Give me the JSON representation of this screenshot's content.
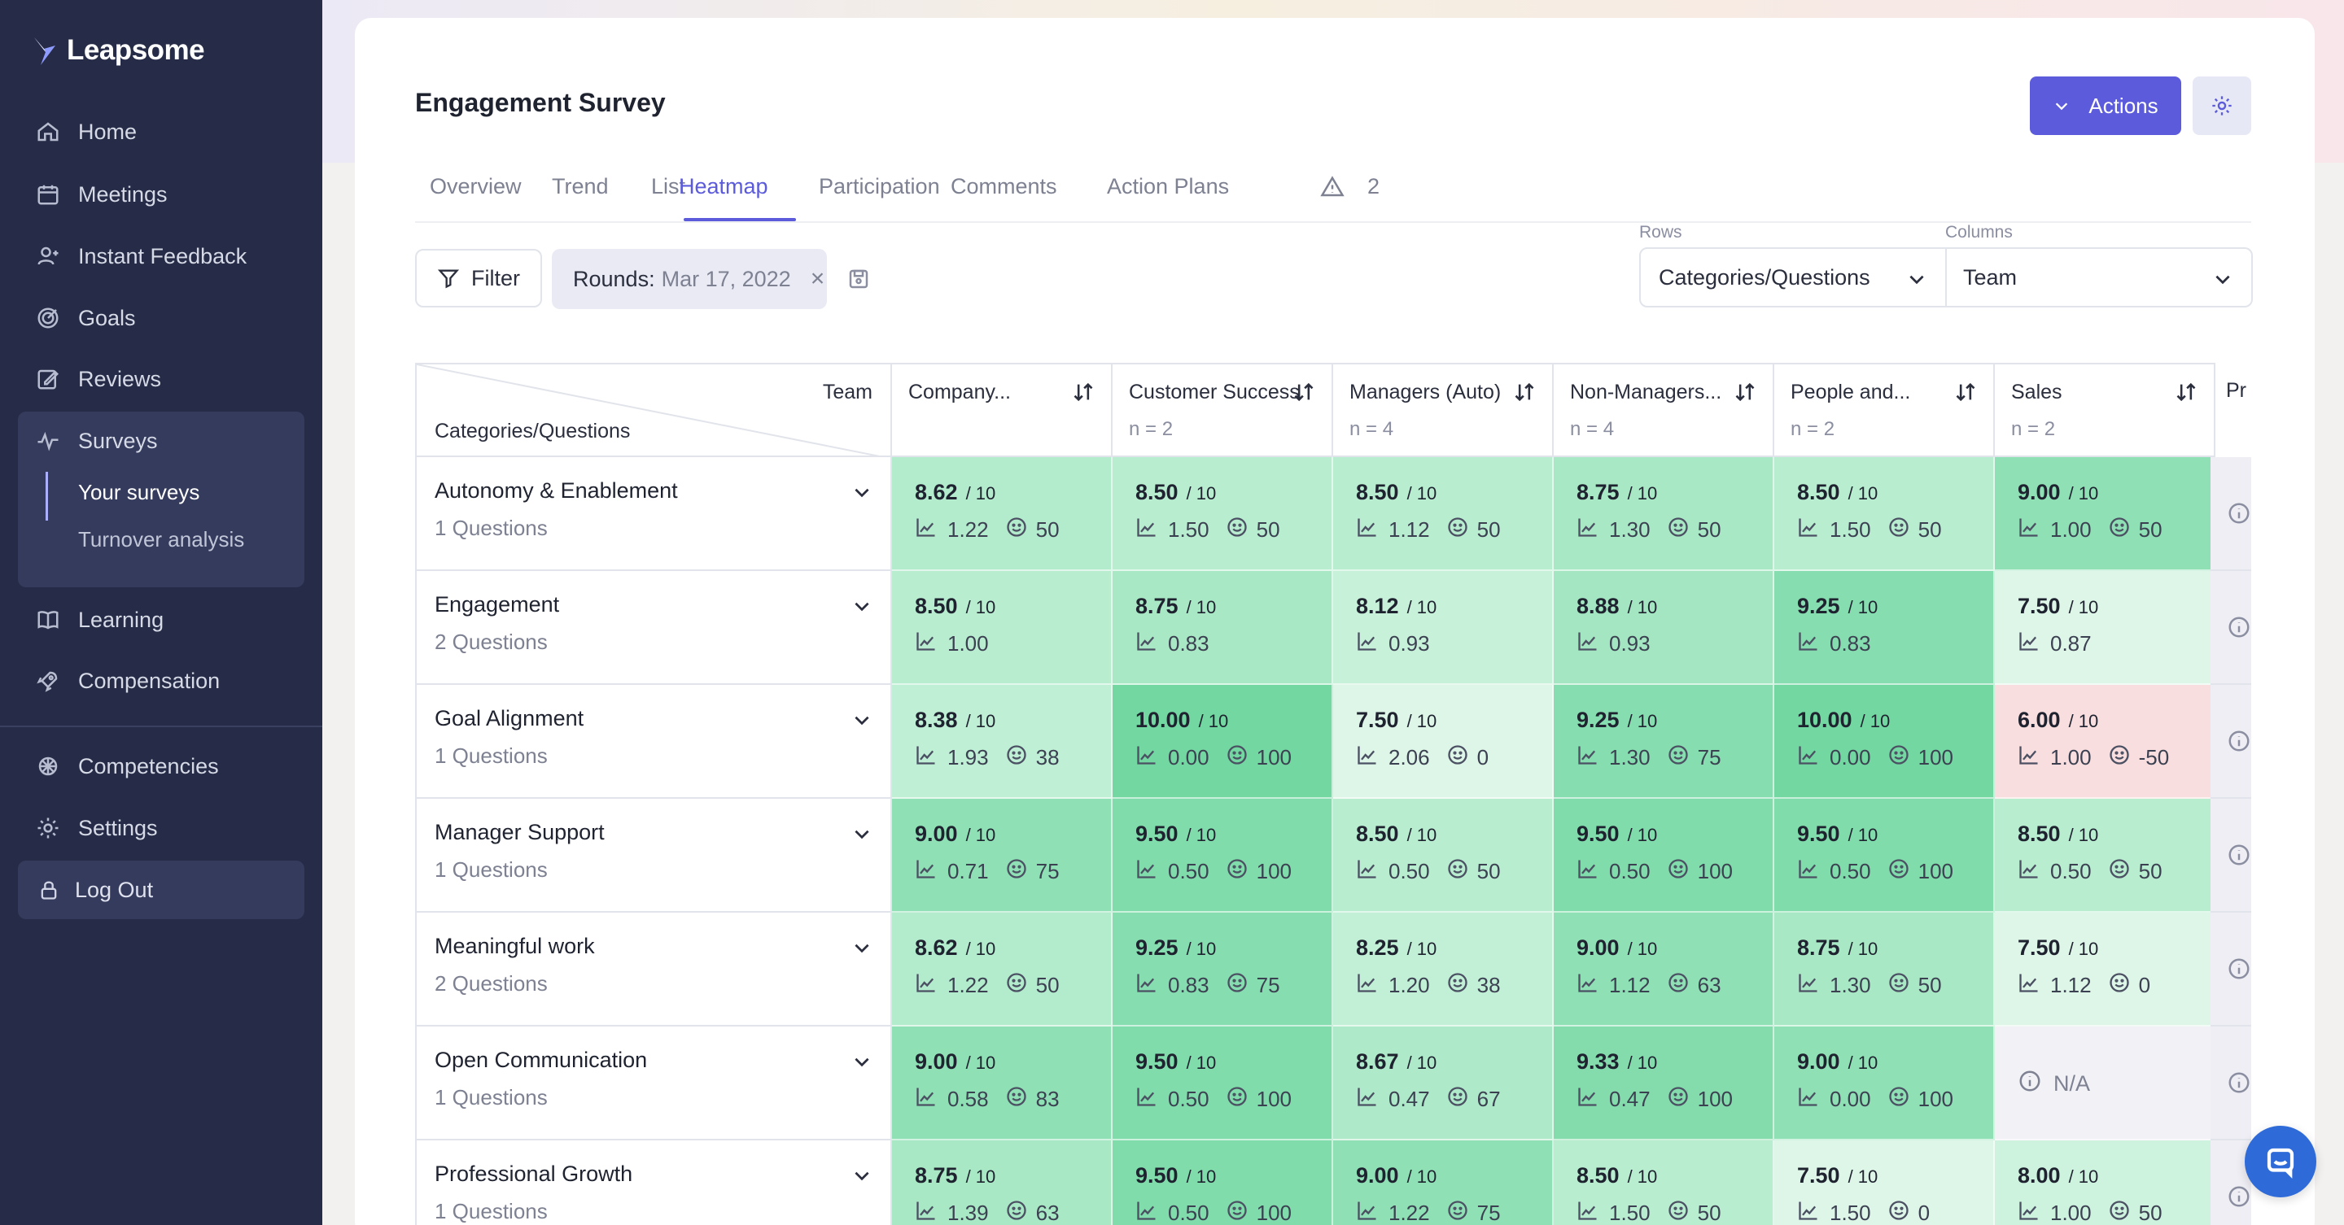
{
  "brand": {
    "name": "Leapsome"
  },
  "sidebar": {
    "items": [
      {
        "label": "Home",
        "icon": "home-icon"
      },
      {
        "label": "Meetings",
        "icon": "calendar-icon"
      },
      {
        "label": "Instant Feedback",
        "icon": "feedback-icon"
      },
      {
        "label": "Goals",
        "icon": "target-icon"
      },
      {
        "label": "Reviews",
        "icon": "edit-icon"
      },
      {
        "label": "Surveys",
        "icon": "pulse-icon"
      },
      {
        "label": "Learning",
        "icon": "book-icon"
      },
      {
        "label": "Compensation",
        "icon": "rocket-icon"
      },
      {
        "label": "Competencies",
        "icon": "badge-icon"
      },
      {
        "label": "Settings",
        "icon": "gear-icon"
      }
    ],
    "surveys_sub": [
      {
        "label": "Your surveys",
        "active": true
      },
      {
        "label": "Turnover analysis",
        "active": false
      }
    ],
    "logout": "Log Out"
  },
  "header": {
    "title": "Engagement Survey",
    "actions_label": "Actions"
  },
  "tabs": [
    {
      "label": "Overview"
    },
    {
      "label": "Trend"
    },
    {
      "label": "List"
    },
    {
      "label": "Heatmap",
      "active": true
    },
    {
      "label": "Participation"
    },
    {
      "label": "Comments"
    },
    {
      "label": "Action Plans"
    }
  ],
  "warnings_count": "2",
  "filters": {
    "filter_label": "Filter",
    "rounds_label": "Rounds:",
    "rounds_value": "Mar 17, 2022"
  },
  "selectors": {
    "rows_label": "Rows",
    "rows_value": "Categories/Questions",
    "columns_label": "Columns",
    "columns_value": "Team"
  },
  "heatmap": {
    "corner_top": "Team",
    "corner_bottom": "Categories/Questions",
    "columns": [
      {
        "name": "Company...",
        "n": ""
      },
      {
        "name": "Customer Success",
        "n": "n = 2"
      },
      {
        "name": "Managers (Auto)",
        "n": "n = 4"
      },
      {
        "name": "Non-Managers...",
        "n": "n = 4"
      },
      {
        "name": "People and...",
        "n": "n = 2"
      },
      {
        "name": "Sales",
        "n": "n = 2"
      }
    ],
    "partial_column": "Pr",
    "out_of": "/ 10",
    "na_label": "N/A",
    "rows": [
      {
        "title": "Autonomy & Enablement",
        "count": "1 Questions",
        "cells": [
          {
            "score": "8.62",
            "sd": "1.22",
            "enps": "50",
            "color": "#b3ebcd"
          },
          {
            "score": "8.50",
            "sd": "1.50",
            "enps": "50",
            "color": "#b8edd0"
          },
          {
            "score": "8.50",
            "sd": "1.12",
            "enps": "50",
            "color": "#b8edd0"
          },
          {
            "score": "8.75",
            "sd": "1.30",
            "enps": "50",
            "color": "#a9e8c5"
          },
          {
            "score": "8.50",
            "sd": "1.50",
            "enps": "50",
            "color": "#b8edd0"
          },
          {
            "score": "9.00",
            "sd": "1.00",
            "enps": "50",
            "color": "#8fe0b5"
          }
        ]
      },
      {
        "title": "Engagement",
        "count": "2 Questions",
        "cells": [
          {
            "score": "8.50",
            "sd": "1.00",
            "enps": "",
            "color": "#b8edd0"
          },
          {
            "score": "8.75",
            "sd": "0.83",
            "enps": "",
            "color": "#a9e8c5"
          },
          {
            "score": "8.12",
            "sd": "0.93",
            "enps": "",
            "color": "#c8f1da"
          },
          {
            "score": "8.88",
            "sd": "0.93",
            "enps": "",
            "color": "#a3e6c1"
          },
          {
            "score": "9.25",
            "sd": "0.83",
            "enps": "",
            "color": "#86ddaf"
          },
          {
            "score": "7.50",
            "sd": "0.87",
            "enps": "",
            "color": "#def6e8"
          }
        ]
      },
      {
        "title": "Goal Alignment",
        "count": "1 Questions",
        "cells": [
          {
            "score": "8.38",
            "sd": "1.93",
            "enps": "38",
            "color": "#bfefd5"
          },
          {
            "score": "10.00",
            "sd": "0.00",
            "enps": "100",
            "color": "#73d7a2"
          },
          {
            "score": "7.50",
            "sd": "2.06",
            "enps": "0",
            "color": "#def6e8"
          },
          {
            "score": "9.25",
            "sd": "1.30",
            "enps": "75",
            "color": "#86ddaf"
          },
          {
            "score": "10.00",
            "sd": "0.00",
            "enps": "100",
            "color": "#73d7a2"
          },
          {
            "score": "6.00",
            "sd": "1.00",
            "enps": "-50",
            "color": "#f8dede"
          }
        ]
      },
      {
        "title": "Manager Support",
        "count": "1 Questions",
        "cells": [
          {
            "score": "9.00",
            "sd": "0.71",
            "enps": "75",
            "color": "#8fe0b5"
          },
          {
            "score": "9.50",
            "sd": "0.50",
            "enps": "100",
            "color": "#80dcab"
          },
          {
            "score": "8.50",
            "sd": "0.50",
            "enps": "50",
            "color": "#b8edd0"
          },
          {
            "score": "9.50",
            "sd": "0.50",
            "enps": "100",
            "color": "#80dcab"
          },
          {
            "score": "9.50",
            "sd": "0.50",
            "enps": "100",
            "color": "#80dcab"
          },
          {
            "score": "8.50",
            "sd": "0.50",
            "enps": "50",
            "color": "#b8edd0"
          }
        ]
      },
      {
        "title": "Meaningful work",
        "count": "2 Questions",
        "cells": [
          {
            "score": "8.62",
            "sd": "1.22",
            "enps": "50",
            "color": "#b3ebcd"
          },
          {
            "score": "9.25",
            "sd": "0.83",
            "enps": "75",
            "color": "#86ddaf"
          },
          {
            "score": "8.25",
            "sd": "1.20",
            "enps": "38",
            "color": "#c2f0d6"
          },
          {
            "score": "9.00",
            "sd": "1.12",
            "enps": "63",
            "color": "#8fe0b5"
          },
          {
            "score": "8.75",
            "sd": "1.30",
            "enps": "50",
            "color": "#a9e8c5"
          },
          {
            "score": "7.50",
            "sd": "1.12",
            "enps": "0",
            "color": "#def6e8"
          }
        ]
      },
      {
        "title": "Open Communication",
        "count": "1 Questions",
        "cells": [
          {
            "score": "9.00",
            "sd": "0.58",
            "enps": "83",
            "color": "#8fe0b5"
          },
          {
            "score": "9.50",
            "sd": "0.50",
            "enps": "100",
            "color": "#80dcab"
          },
          {
            "score": "8.67",
            "sd": "0.47",
            "enps": "67",
            "color": "#aee9c9"
          },
          {
            "score": "9.33",
            "sd": "0.47",
            "enps": "100",
            "color": "#84dcad"
          },
          {
            "score": "9.00",
            "sd": "0.00",
            "enps": "100",
            "color": "#8fe0b5"
          },
          {
            "na": true,
            "color": "#f1f1f6"
          }
        ]
      },
      {
        "title": "Professional Growth",
        "count": "1 Questions",
        "cells": [
          {
            "score": "8.75",
            "sd": "1.39",
            "enps": "63",
            "color": "#a9e8c5"
          },
          {
            "score": "9.50",
            "sd": "0.50",
            "enps": "100",
            "color": "#80dcab"
          },
          {
            "score": "9.00",
            "sd": "1.22",
            "enps": "75",
            "color": "#8fe0b5"
          },
          {
            "score": "8.50",
            "sd": "1.50",
            "enps": "50",
            "color": "#b8edd0"
          },
          {
            "score": "7.50",
            "sd": "1.50",
            "enps": "0",
            "color": "#def6e8"
          },
          {
            "score": "8.00",
            "sd": "1.00",
            "enps": "50",
            "color": "#cdf2de"
          }
        ]
      }
    ]
  }
}
